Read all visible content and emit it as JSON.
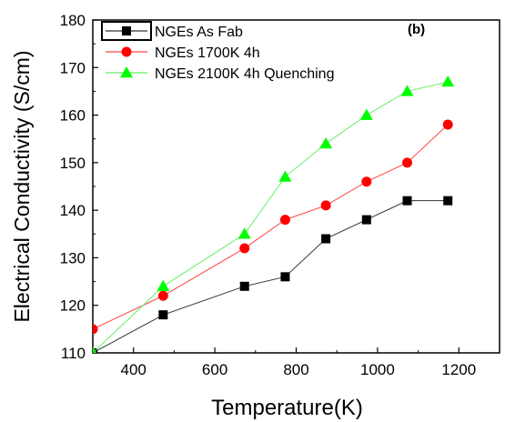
{
  "chart_data": {
    "type": "line",
    "panel_label": "(b)",
    "xlabel": "Temperature(K)",
    "ylabel": "Electrical Conductivity (S/cm)",
    "xlim": [
      300,
      1300
    ],
    "ylim": [
      110,
      180
    ],
    "xticks": [
      400,
      600,
      800,
      1000,
      1200
    ],
    "yticks": [
      110,
      120,
      130,
      140,
      150,
      160,
      170,
      180
    ],
    "legend_position": "top-left",
    "grid": false,
    "series": [
      {
        "name": "NGEs As Fab",
        "color": "#000000",
        "marker": "square",
        "x": [
          300,
          473,
          673,
          773,
          873,
          973,
          1073,
          1173
        ],
        "y": [
          110,
          118,
          124,
          126,
          134,
          138,
          142,
          142
        ]
      },
      {
        "name": "NGEs 1700K 4h",
        "color": "#ff0000",
        "marker": "circle",
        "x": [
          300,
          473,
          673,
          773,
          873,
          973,
          1073,
          1173
        ],
        "y": [
          115,
          122,
          132,
          138,
          141,
          146,
          150,
          158
        ]
      },
      {
        "name": "NGEs 2100K 4h Quenching",
        "color": "#00ff00",
        "marker": "triangle",
        "x": [
          300,
          473,
          673,
          773,
          873,
          973,
          1073,
          1173
        ],
        "y": [
          110,
          124,
          135,
          147,
          154,
          160,
          165,
          167
        ]
      }
    ]
  }
}
